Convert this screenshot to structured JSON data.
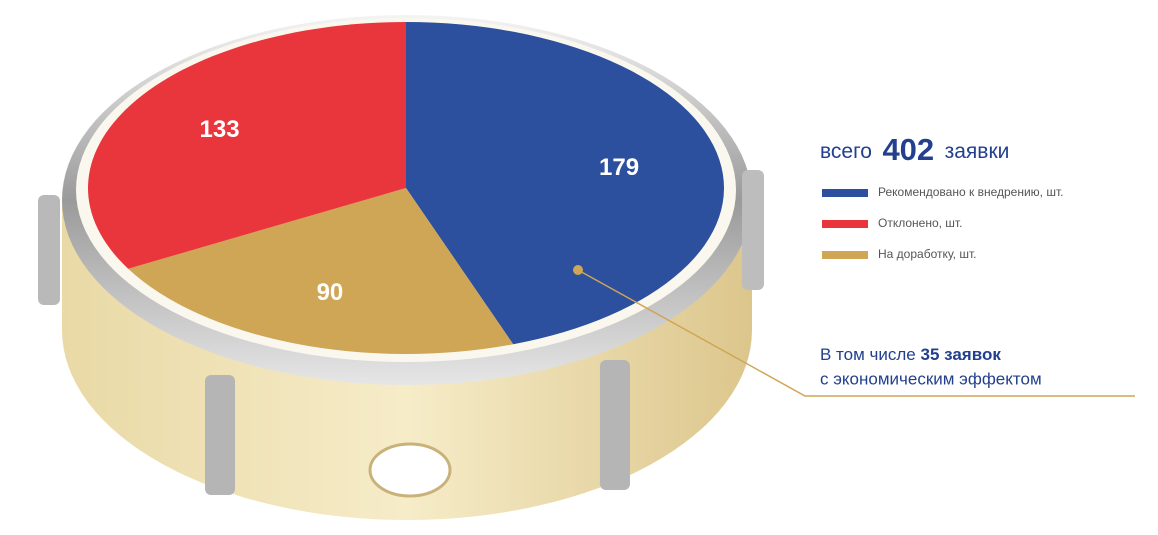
{
  "chart_data": {
    "type": "pie",
    "total_prefix": "всего",
    "total": 402,
    "total_suffix": "заявки",
    "categories": [
      "Рекомендовано к внедрению, шт.",
      "Отклонено, шт.",
      "На доработку, шт."
    ],
    "values": [
      179,
      133,
      90
    ],
    "colors": [
      "#2c4f9e",
      "#e8363c",
      "#cfa655"
    ],
    "order": [
      0,
      2,
      1
    ],
    "annotation": {
      "prefix": "В том числе",
      "highlight": "35 заявок",
      "line2": "с экономическим эффектом"
    }
  }
}
